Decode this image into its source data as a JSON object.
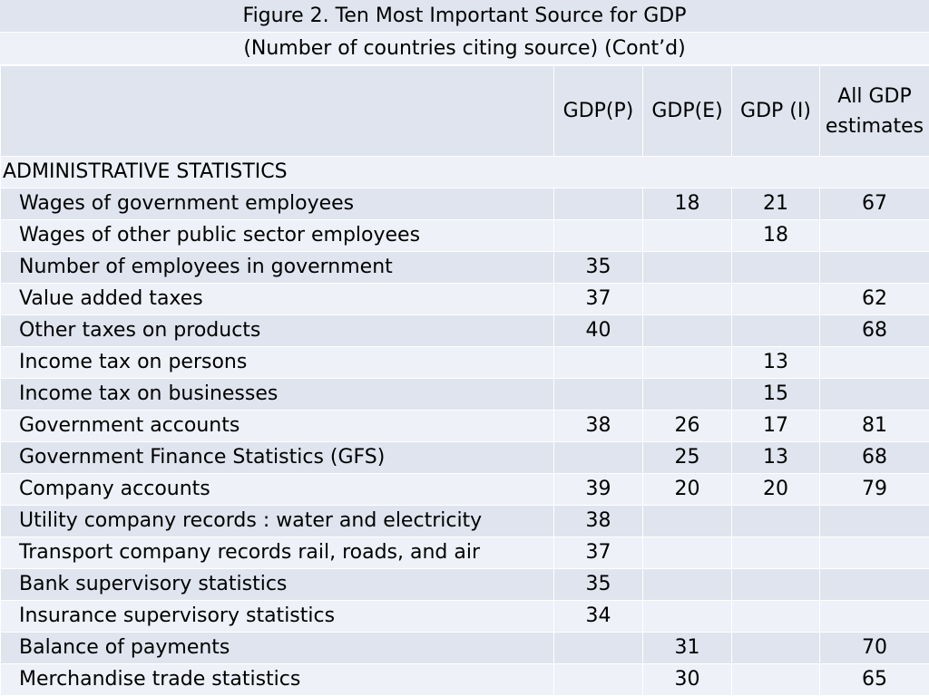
{
  "title_line1": "Figure 2. Ten Most Important Source for GDP",
  "title_line2": "(Number of countries citing source) (Cont’d)",
  "columns": {
    "p": "GDP(P)",
    "e": "GDP(E)",
    "i": "GDP (I)",
    "all": "All GDP estimates"
  },
  "section": "ADMINISTRATIVE STATISTICS",
  "rows": [
    {
      "label": "Wages of government employees",
      "p": "",
      "e": "18",
      "i": "21",
      "all": "67"
    },
    {
      "label": "Wages of other public sector employees",
      "p": "",
      "e": "",
      "i": "18",
      "all": ""
    },
    {
      "label": "Number of employees in government",
      "p": "35",
      "e": "",
      "i": "",
      "all": ""
    },
    {
      "label": "Value added taxes",
      "p": "37",
      "e": "",
      "i": "",
      "all": "62"
    },
    {
      "label": "Other taxes on products",
      "p": "40",
      "e": "",
      "i": "",
      "all": "68"
    },
    {
      "label": "Income tax on persons",
      "p": "",
      "e": "",
      "i": "13",
      "all": ""
    },
    {
      "label": "Income tax on businesses",
      "p": "",
      "e": "",
      "i": "15",
      "all": ""
    },
    {
      "label": "Government accounts",
      "p": "38",
      "e": "26",
      "i": "17",
      "all": "81"
    },
    {
      "label": "Government Finance Statistics  (GFS)",
      "p": "",
      "e": "25",
      "i": "13",
      "all": "68"
    },
    {
      "label": "Company accounts",
      "p": "39",
      "e": "20",
      "i": "20",
      "all": "79"
    },
    {
      "label": "Utility company records : water and electricity",
      "p": "38",
      "e": "",
      "i": "",
      "all": ""
    },
    {
      "label": "Transport company records rail, roads, and air",
      "p": "37",
      "e": "",
      "i": "",
      "all": ""
    },
    {
      "label": "Bank supervisory statistics",
      "p": "35",
      "e": "",
      "i": "",
      "all": ""
    },
    {
      "label": "Insurance supervisory statistics",
      "p": "34",
      "e": "",
      "i": "",
      "all": ""
    },
    {
      "label": "Balance of payments",
      "p": "",
      "e": "31",
      "i": "",
      "all": "70"
    },
    {
      "label": "Merchandise trade statistics",
      "p": "",
      "e": "30",
      "i": "",
      "all": "65"
    }
  ],
  "colors": {
    "band_dark": "#dfe4ee",
    "band_light": "#eef1f7",
    "grid": "#ffffff"
  }
}
